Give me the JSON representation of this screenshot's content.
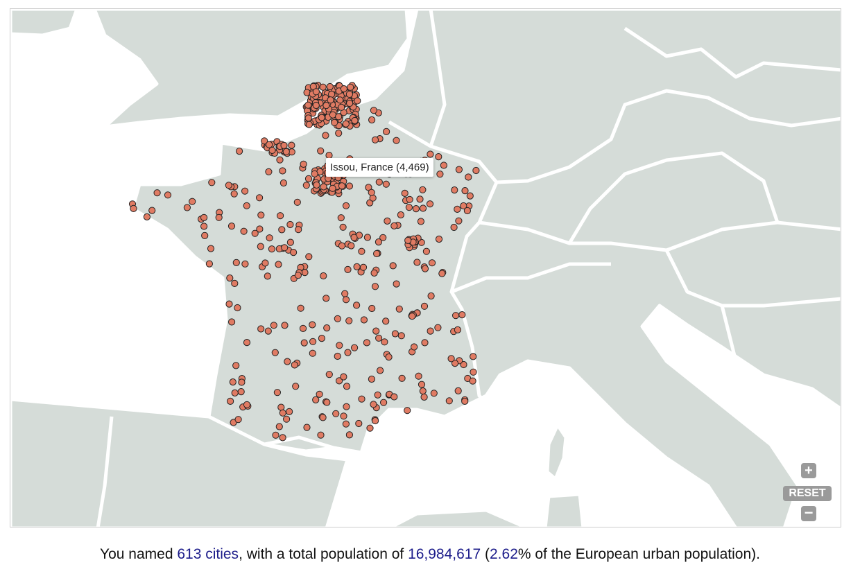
{
  "map": {
    "tooltip": "Issou, France (4,469)",
    "reset": "RESET"
  },
  "summary": {
    "prefix": "You named ",
    "cities": "613 cities",
    "middle": ", with a total population of ",
    "population": "16,984,617",
    "open": " (",
    "percent": "2.62",
    "suffix": "% of the European urban population)."
  }
}
